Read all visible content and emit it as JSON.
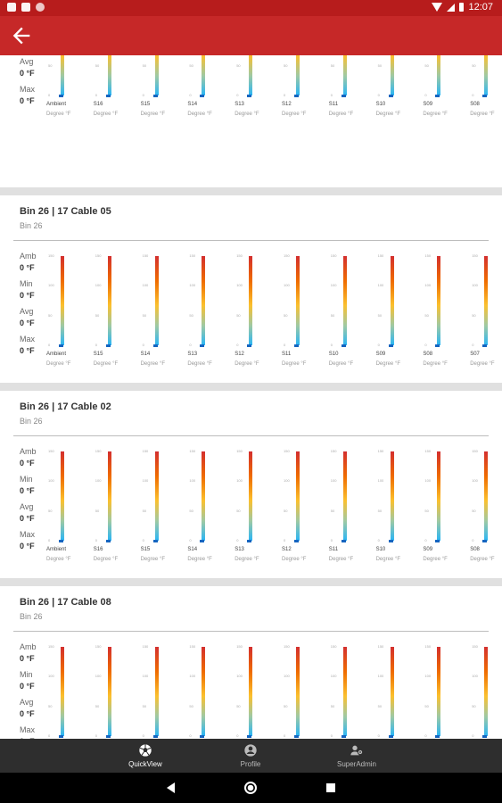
{
  "status_bar": {
    "time": "12:07",
    "left_icons": [
      "notification-icon",
      "sd-card-icon",
      "circle-notification-icon"
    ],
    "right_icons": [
      "wifi-icon",
      "signal-icon",
      "battery-icon"
    ]
  },
  "app_bar": {
    "back_icon": "arrow-left-icon",
    "color": "#c62828"
  },
  "stat_labels": {
    "amb": "Amb",
    "min": "Min",
    "avg": "Avg",
    "max": "Max"
  },
  "stat_value": "0 °F",
  "scale_ticks": [
    "150",
    "100",
    "50",
    "0"
  ],
  "unit": "Degree °F",
  "cards": [
    {
      "title": "",
      "subtitle": "",
      "columns": [
        "Ambient",
        "S16",
        "S15",
        "S14",
        "S13",
        "S12",
        "S11",
        "S10",
        "S09",
        "S08"
      ]
    },
    {
      "title": "Bin 26 | 17 Cable 05",
      "subtitle": "Bin 26",
      "columns": [
        "Ambient",
        "S15",
        "S14",
        "S13",
        "S12",
        "S11",
        "S10",
        "S09",
        "S08",
        "S07"
      ]
    },
    {
      "title": "Bin 26 | 17 Cable 02",
      "subtitle": "Bin 26",
      "columns": [
        "Ambient",
        "S16",
        "S15",
        "S14",
        "S13",
        "S12",
        "S11",
        "S10",
        "S09",
        "S08"
      ]
    },
    {
      "title": "Bin 26 | 17 Cable 08",
      "subtitle": "Bin 26",
      "columns": []
    }
  ],
  "bottom_nav": {
    "items": [
      {
        "label": "QuickView",
        "icon": "soccer-ball-icon",
        "active": true
      },
      {
        "label": "Profile",
        "icon": "account-circle-icon",
        "active": false
      },
      {
        "label": "SuperAdmin",
        "icon": "admin-user-icon",
        "active": false
      }
    ]
  },
  "system_nav": {
    "buttons": [
      "back-triangle-icon",
      "home-circle-icon",
      "recents-square-icon"
    ]
  }
}
